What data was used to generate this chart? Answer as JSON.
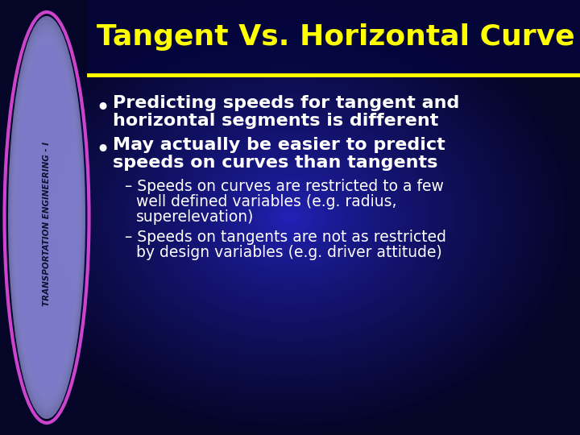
{
  "title": "Tangent Vs. Horizontal Curve",
  "title_color": "#FFFF00",
  "title_fontsize": 26,
  "bg_color_dark": "#050530",
  "bg_color_mid": "#1A1A8A",
  "sidebar_text": "TRANSPORTATION ENGINEERING - I",
  "sidebar_ellipse_color_outer": "#CC44CC",
  "sidebar_ellipse_color_inner_top": "#AAAAEE",
  "sidebar_ellipse_color_inner_bot": "#6666CC",
  "yellow_line_color": "#FFFF00",
  "bullet1_line1": "Predicting speeds for tangent and",
  "bullet1_line2": "horizontal segments is different",
  "bullet2_line1": "May actually be easier to predict",
  "bullet2_line2": "speeds on curves than tangents",
  "sub1_line1": "– Speeds on curves are restricted to a few",
  "sub1_line2": "    well defined variables (e.g. radius,",
  "sub1_line3": "    superelevation)",
  "sub2_line1": "– Speeds on tangents are not as restricted",
  "sub2_line2": "    by design variables (e.g. driver attitude)",
  "text_color": "#FFFFFF",
  "bullet_fontsize": 16,
  "sub_fontsize": 13.5,
  "sidebar_text_color": "#111133"
}
